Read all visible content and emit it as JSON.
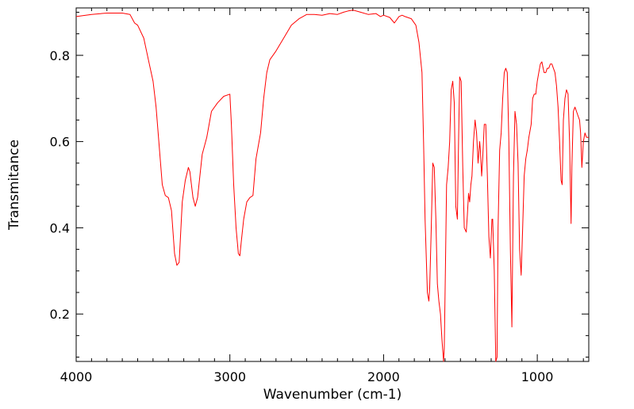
{
  "chart_data": {
    "type": "line",
    "title": "",
    "xlabel": "Wavenumber (cm-1)",
    "ylabel": "Transmitance",
    "xlim": [
      4000,
      665
    ],
    "ylim": [
      0.09,
      0.91
    ],
    "x_reversed": true,
    "grid": false,
    "legend": "none",
    "x_ticks": [
      {
        "value": 4000,
        "label": "4000"
      },
      {
        "value": 3000,
        "label": "3000"
      },
      {
        "value": 2000,
        "label": "2000"
      },
      {
        "value": 1000,
        "label": "1000"
      }
    ],
    "y_ticks": [
      {
        "value": 0.2,
        "label": "0.2"
      },
      {
        "value": 0.4,
        "label": "0.4"
      },
      {
        "value": 0.6,
        "label": "0.6"
      },
      {
        "value": 0.8,
        "label": "0.8"
      }
    ],
    "series": [
      {
        "color": "#ff0000",
        "x": [
          4000,
          3900,
          3800,
          3700,
          3650,
          3620,
          3600,
          3560,
          3530,
          3500,
          3480,
          3460,
          3440,
          3420,
          3400,
          3380,
          3360,
          3345,
          3330,
          3310,
          3290,
          3270,
          3260,
          3240,
          3225,
          3210,
          3180,
          3150,
          3120,
          3080,
          3040,
          3000,
          2990,
          2975,
          2960,
          2945,
          2935,
          2925,
          2910,
          2890,
          2870,
          2850,
          2830,
          2815,
          2800,
          2780,
          2760,
          2740,
          2700,
          2650,
          2600,
          2550,
          2500,
          2450,
          2400,
          2350,
          2300,
          2260,
          2230,
          2200,
          2150,
          2100,
          2050,
          2020,
          2000,
          1960,
          1930,
          1900,
          1880,
          1860,
          1820,
          1790,
          1770,
          1750,
          1740,
          1730,
          1715,
          1705,
          1700,
          1690,
          1680,
          1670,
          1660,
          1650,
          1640,
          1630,
          1620,
          1610,
          1605,
          1598,
          1590,
          1580,
          1570,
          1560,
          1550,
          1540,
          1530,
          1520,
          1512,
          1505,
          1495,
          1485,
          1475,
          1462,
          1455,
          1447,
          1440,
          1432,
          1425,
          1415,
          1405,
          1395,
          1385,
          1375,
          1370,
          1362,
          1355,
          1345,
          1335,
          1325,
          1315,
          1305,
          1295,
          1290,
          1280,
          1270,
          1262,
          1255,
          1245,
          1235,
          1225,
          1215,
          1205,
          1195,
          1185,
          1175,
          1165,
          1155,
          1145,
          1135,
          1125,
          1115,
          1105,
          1095,
          1085,
          1075,
          1065,
          1055,
          1040,
          1030,
          1020,
          1010,
          1000,
          990,
          980,
          970,
          962,
          955,
          945,
          935,
          925,
          915,
          905,
          895,
          885,
          875,
          865,
          855,
          845,
          838,
          830,
          820,
          810,
          800,
          790,
          780,
          775,
          765,
          755,
          745,
          735,
          725,
          718,
          710,
          700,
          690,
          680,
          670,
          665
        ],
        "y": [
          0.89,
          0.895,
          0.898,
          0.898,
          0.895,
          0.875,
          0.87,
          0.84,
          0.79,
          0.74,
          0.68,
          0.59,
          0.5,
          0.475,
          0.47,
          0.44,
          0.34,
          0.313,
          0.32,
          0.46,
          0.51,
          0.54,
          0.53,
          0.47,
          0.45,
          0.47,
          0.57,
          0.61,
          0.67,
          0.69,
          0.705,
          0.71,
          0.64,
          0.5,
          0.4,
          0.34,
          0.335,
          0.37,
          0.42,
          0.46,
          0.47,
          0.475,
          0.56,
          0.59,
          0.62,
          0.7,
          0.76,
          0.79,
          0.81,
          0.84,
          0.87,
          0.885,
          0.895,
          0.895,
          0.893,
          0.897,
          0.895,
          0.9,
          0.903,
          0.905,
          0.9,
          0.895,
          0.897,
          0.89,
          0.893,
          0.888,
          0.875,
          0.89,
          0.893,
          0.89,
          0.885,
          0.87,
          0.83,
          0.76,
          0.6,
          0.42,
          0.25,
          0.23,
          0.26,
          0.4,
          0.55,
          0.54,
          0.42,
          0.27,
          0.23,
          0.2,
          0.14,
          0.09,
          0.12,
          0.3,
          0.5,
          0.54,
          0.6,
          0.72,
          0.74,
          0.69,
          0.45,
          0.42,
          0.6,
          0.75,
          0.74,
          0.54,
          0.4,
          0.39,
          0.43,
          0.48,
          0.46,
          0.5,
          0.52,
          0.6,
          0.65,
          0.62,
          0.55,
          0.6,
          0.58,
          0.52,
          0.56,
          0.64,
          0.64,
          0.52,
          0.38,
          0.33,
          0.42,
          0.42,
          0.3,
          0.09,
          0.1,
          0.4,
          0.58,
          0.62,
          0.7,
          0.76,
          0.77,
          0.76,
          0.6,
          0.35,
          0.17,
          0.52,
          0.67,
          0.64,
          0.55,
          0.35,
          0.29,
          0.4,
          0.52,
          0.56,
          0.58,
          0.61,
          0.64,
          0.7,
          0.71,
          0.71,
          0.74,
          0.76,
          0.78,
          0.785,
          0.77,
          0.76,
          0.76,
          0.77,
          0.77,
          0.78,
          0.78,
          0.77,
          0.76,
          0.73,
          0.68,
          0.6,
          0.51,
          0.5,
          0.65,
          0.7,
          0.72,
          0.71,
          0.6,
          0.41,
          0.54,
          0.67,
          0.68,
          0.67,
          0.66,
          0.65,
          0.62,
          0.54,
          0.6,
          0.62,
          0.61,
          0.61,
          0.61
        ]
      }
    ]
  }
}
